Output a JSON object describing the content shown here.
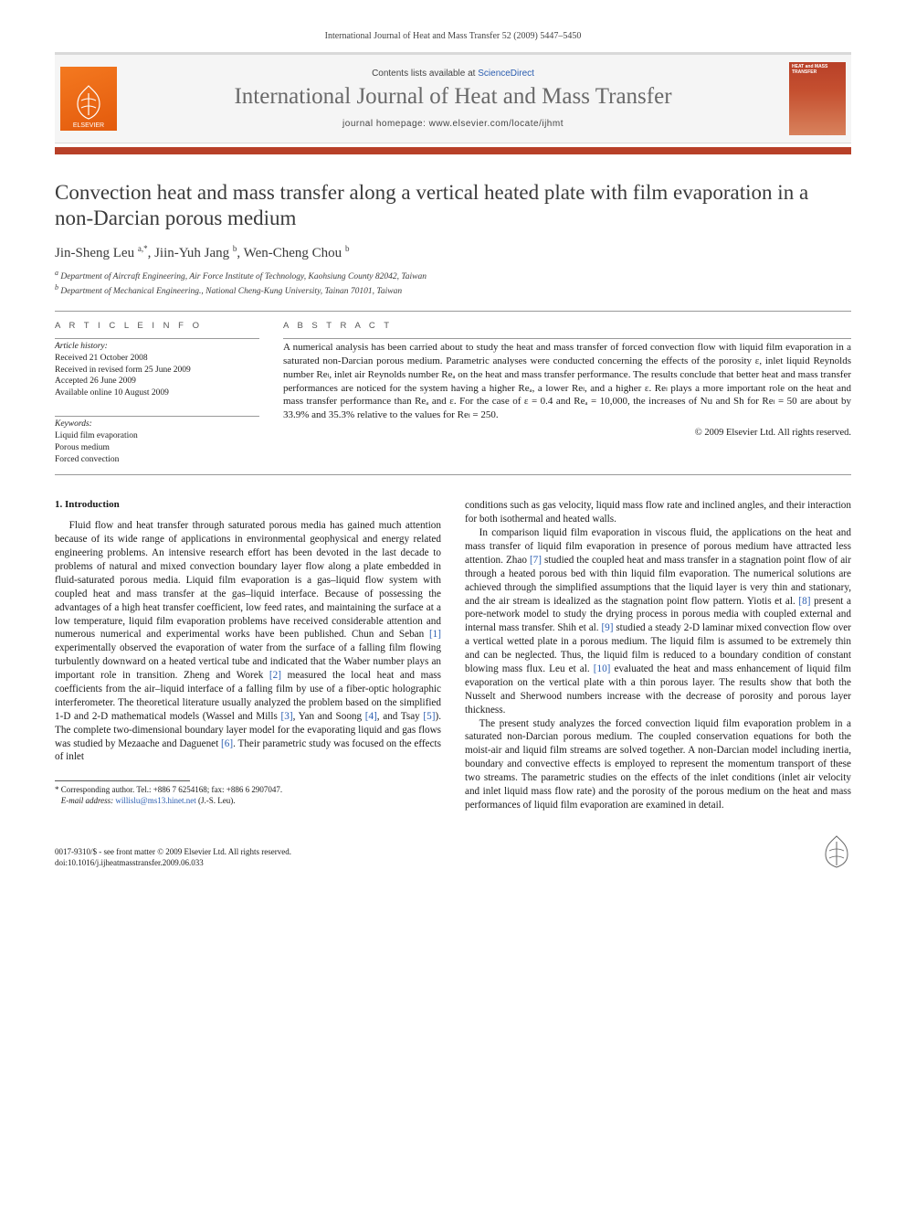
{
  "header": {
    "citation": "International Journal of Heat and Mass Transfer 52 (2009) 5447–5450",
    "contents_line_prefix": "Contents lists available at ",
    "contents_link": "ScienceDirect",
    "journal_title": "International Journal of Heat and Mass Transfer",
    "homepage_label": "journal homepage: www.elsevier.com/locate/ijhmt",
    "publisher": "ELSEVIER",
    "cover_text": "HEAT and MASS TRANSFER"
  },
  "article": {
    "title": "Convection heat and mass transfer along a vertical heated plate with film evaporation in a non-Darcian porous medium",
    "authors_html": "Jin-Sheng Leu <sup>a,*</sup>, Jiin-Yuh Jang <sup>b</sup>, Wen-Cheng Chou <sup>b</sup>",
    "affiliations": {
      "a": "Department of Aircraft Engineering, Air Force Institute of Technology, Kaohsiung County 82042, Taiwan",
      "b": "Department of Mechanical Engineering., National Cheng-Kung University, Tainan 70101, Taiwan"
    }
  },
  "info": {
    "label": "A R T I C L E   I N F O",
    "history_title": "Article history:",
    "history": [
      "Received 21 October 2008",
      "Received in revised form 25 June 2009",
      "Accepted 26 June 2009",
      "Available online 10 August 2009"
    ],
    "keywords_title": "Keywords:",
    "keywords": [
      "Liquid film evaporation",
      "Porous medium",
      "Forced convection"
    ]
  },
  "abstract": {
    "label": "A B S T R A C T",
    "text": "A numerical analysis has been carried about to study the heat and mass transfer of forced convection flow with liquid film evaporation in a saturated non-Darcian porous medium. Parametric analyses were conducted concerning the effects of the porosity ε, inlet liquid Reynolds number Reₗ, inlet air Reynolds number Reₐ on the heat and mass transfer performance. The results conclude that better heat and mass transfer performances are noticed for the system having a higher Reₐ, a lower Reₗ, and a higher ε. Reₗ plays a more important role on the heat and mass transfer performance than Reₐ and ε. For the case of ε = 0.4 and Reₐ = 10,000, the increases of Nu and Sh for Reₗ = 50 are about by 33.9% and 35.3% relative to the values for Reₗ = 250.",
    "copyright": "© 2009 Elsevier Ltd. All rights reserved."
  },
  "body": {
    "section1_heading": "1. Introduction",
    "left_para": "Fluid flow and heat transfer through saturated porous media has gained much attention because of its wide range of applications in environmental geophysical and energy related engineering problems. An intensive research effort has been devoted in the last decade to problems of natural and mixed convection boundary layer flow along a plate embedded in fluid-saturated porous media. Liquid film evaporation is a gas–liquid flow system with coupled heat and mass transfer at the gas–liquid interface. Because of possessing the advantages of a high heat transfer coefficient, low feed rates, and maintaining the surface at a low temperature, liquid film evaporation problems have received considerable attention and numerous numerical and experimental works have been published. Chun and Seban [1] experimentally observed the evaporation of water from the surface of a falling film flowing turbulently downward on a heated vertical tube and indicated that the Waber number plays an important role in transition. Zheng and Worek [2] measured the local heat and mass coefficients from the air–liquid interface of a falling film by use of a fiber-optic holographic interferometer. The theoretical literature usually analyzed the problem based on the simplified 1-D and 2-D mathematical models (Wassel and Mills [3], Yan and Soong [4], and Tsay [5]). The complete two-dimensional boundary layer model for the evaporating liquid and gas flows was studied by Mezaache and Daguenet [6]. Their parametric study was focused on the effects of inlet",
    "right_para1_prefix": "conditions such as gas velocity, liquid mass flow rate and inclined angles, and their interaction for both isothermal and heated walls.",
    "right_para2": "In comparison liquid film evaporation in viscous fluid, the applications on the heat and mass transfer of liquid film evaporation in presence of porous medium have attracted less attention. Zhao [7] studied the coupled heat and mass transfer in a stagnation point flow of air through a heated porous bed with thin liquid film evaporation. The numerical solutions are achieved through the simplified assumptions that the liquid layer is very thin and stationary, and the air stream is idealized as the stagnation point flow pattern. Yiotis et al. [8] present a pore-network model to study the drying process in porous media with coupled external and internal mass transfer. Shih et al. [9] studied a steady 2-D laminar mixed convection flow over a vertical wetted plate in a porous medium. The liquid film is assumed to be extremely thin and can be neglected. Thus, the liquid film is reduced to a boundary condition of constant blowing mass flux. Leu et al. [10] evaluated the heat and mass enhancement of liquid film evaporation on the vertical plate with a thin porous layer. The results show that both the Nusselt and Sherwood numbers increase with the decrease of porosity and porous layer thickness.",
    "right_para3": "The present study analyzes the forced convection liquid film evaporation problem in a saturated non-Darcian porous medium. The coupled conservation equations for both the moist-air and liquid film streams are solved together. A non-Darcian model including inertia, boundary and convective effects is employed to represent the momentum transport of these two streams. The parametric studies on the effects of the inlet conditions (inlet air velocity and inlet liquid mass flow rate) and the porosity of the porous medium on the heat and mass performances of liquid film evaporation are examined in detail.",
    "refs": {
      "1": "[1]",
      "2": "[2]",
      "3": "[3]",
      "4": "[4]",
      "5": "[5]",
      "6": "[6]",
      "7": "[7]",
      "8": "[8]",
      "9": "[9]",
      "10": "[10]"
    }
  },
  "footnote": {
    "corr_label": "* Corresponding author. Tel.: +886 7 6254168; fax: +886 6 2907047.",
    "email_label": "E-mail address:",
    "email": "willislu@ms13.hinet.net",
    "email_suffix": "(J.-S. Leu)."
  },
  "bottom": {
    "issn": "0017-9310/$ - see front matter © 2009 Elsevier Ltd. All rights reserved.",
    "doi": "doi:10.1016/j.ijheatmasstransfer.2009.06.033"
  },
  "colors": {
    "brand_orange": "#f47920",
    "rule_red": "#b84028",
    "link_blue": "#2a5db0",
    "gray_title": "#696969"
  }
}
